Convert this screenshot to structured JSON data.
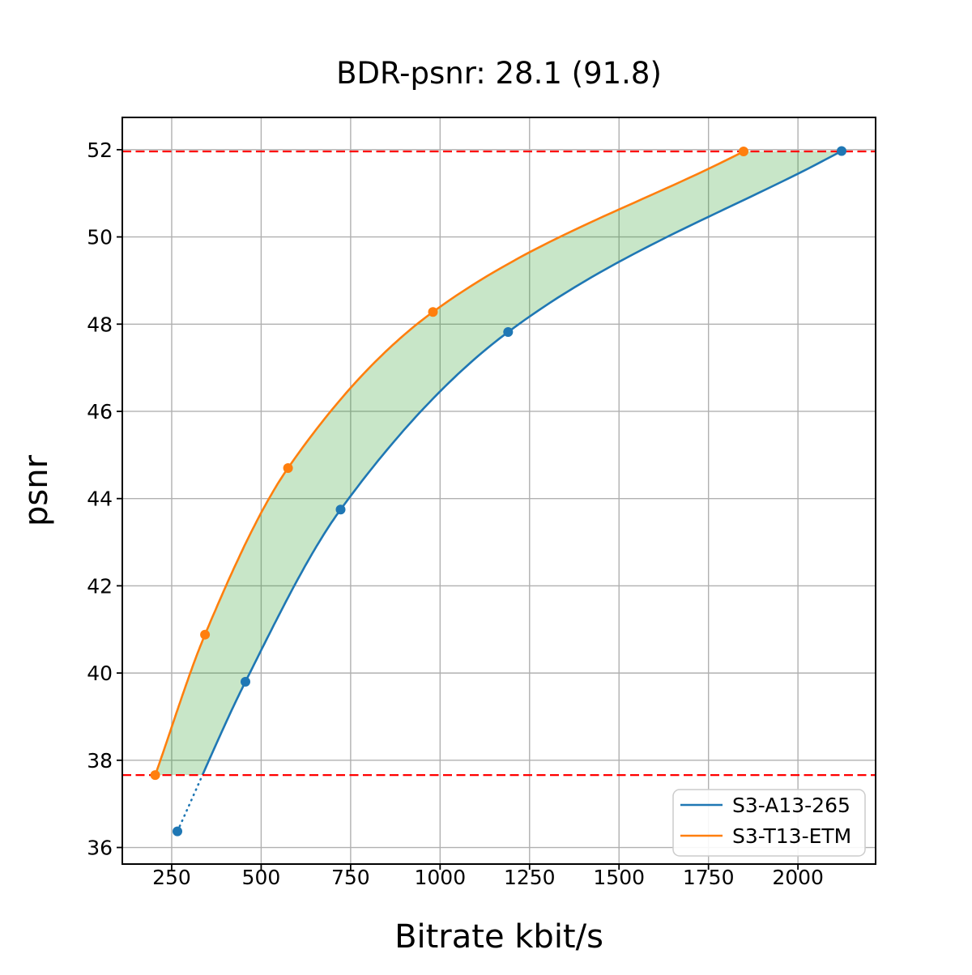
{
  "chart_data": {
    "type": "line",
    "title": "BDR-psnr: 28.1 (91.8)",
    "xlabel": "Bitrate kbit/s",
    "ylabel": "psnr",
    "xlim": [
      112,
      2217
    ],
    "ylim": [
      35.62,
      52.74
    ],
    "x_ticks": [
      250,
      500,
      750,
      1000,
      1250,
      1500,
      1750,
      2000
    ],
    "y_ticks": [
      36,
      38,
      40,
      42,
      44,
      46,
      48,
      50,
      52
    ],
    "grid": true,
    "grid_color": "#b0b0b0",
    "series": [
      {
        "name": "S3-A13-265",
        "color": "#1f77b4",
        "x": [
          266,
          456,
          722,
          1190,
          2122
        ],
        "y": [
          36.37,
          39.8,
          43.75,
          47.82,
          51.97
        ]
      },
      {
        "name": "S3-T13-ETM",
        "color": "#ff7f0e",
        "x": [
          204,
          343,
          575,
          980,
          1848
        ],
        "y": [
          37.66,
          40.88,
          44.7,
          48.28,
          51.96
        ]
      }
    ],
    "hlines": [
      {
        "y": 51.96,
        "color": "#ff0000",
        "style": "dashed"
      },
      {
        "y": 37.66,
        "color": "#ff0000",
        "style": "dashed"
      }
    ],
    "fill_between": {
      "between": [
        "S3-T13-ETM",
        "S3-A13-265"
      ],
      "color": "#2ca02c",
      "opacity": 0.26
    },
    "legend": {
      "position": "lower right",
      "entries": [
        "S3-A13-265",
        "S3-T13-ETM"
      ]
    }
  }
}
